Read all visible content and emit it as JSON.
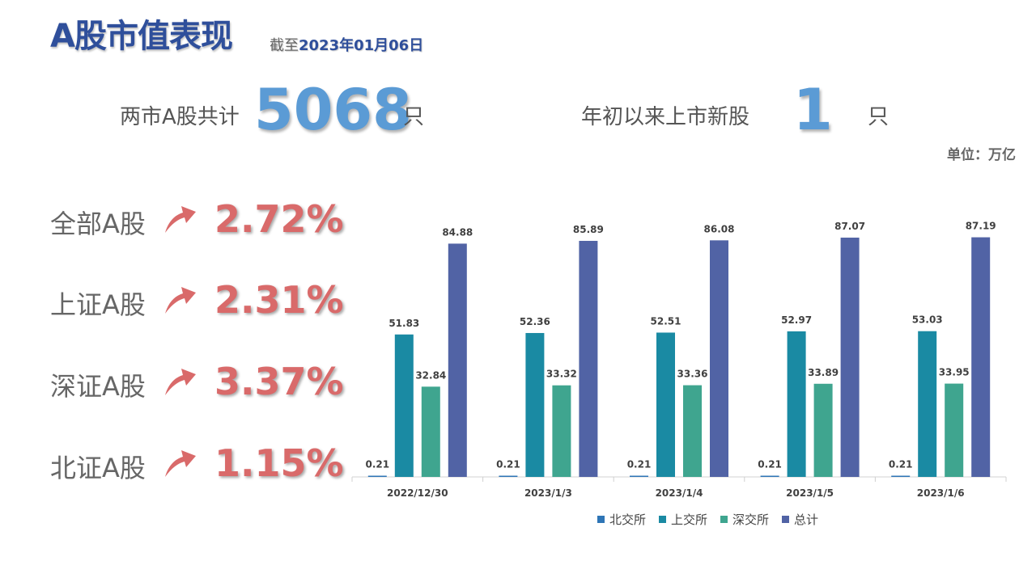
{
  "header": {
    "title": "A股市值表现",
    "date_prefix": "截至",
    "date_value": "2023年01月06日"
  },
  "stats": {
    "total_label": "两市A股共计",
    "total_value": "5068",
    "total_unit": "只",
    "new_label": "年初以来上市新股",
    "new_value": "1",
    "new_unit": "只"
  },
  "unit_note": "单位：万亿",
  "indices": [
    {
      "label": "全部A股",
      "pct": "2.72%"
    },
    {
      "label": "上证A股",
      "pct": "2.31%"
    },
    {
      "label": "深证A股",
      "pct": "3.37%"
    },
    {
      "label": "北证A股",
      "pct": "1.15%"
    }
  ],
  "colors": {
    "title": "#2f4f9b",
    "big_number": "#5b9bd5",
    "pct": "#d96a6a",
    "arrow": "#d96a6a"
  },
  "icons": {
    "arrow": "arrow-up-curved-icon"
  },
  "chart_data": {
    "type": "bar",
    "categories": [
      "2022/12/30",
      "2023/1/3",
      "2023/1/4",
      "2023/1/5",
      "2023/1/6"
    ],
    "series": [
      {
        "name": "北交所",
        "color": "#2e75b6",
        "values": [
          0.21,
          0.21,
          0.21,
          0.21,
          0.21
        ]
      },
      {
        "name": "上交所",
        "color": "#1a8aa3",
        "values": [
          51.83,
          52.36,
          52.51,
          52.97,
          53.03
        ]
      },
      {
        "name": "深交所",
        "color": "#3fa58f",
        "values": [
          32.84,
          33.32,
          33.36,
          33.89,
          33.95
        ]
      },
      {
        "name": "总计",
        "color": "#5163a5",
        "values": [
          84.88,
          85.89,
          86.08,
          87.07,
          87.19
        ]
      }
    ],
    "ylim": [
      0,
      100
    ],
    "grid": false,
    "legend": "bottom",
    "data_labels": true
  }
}
